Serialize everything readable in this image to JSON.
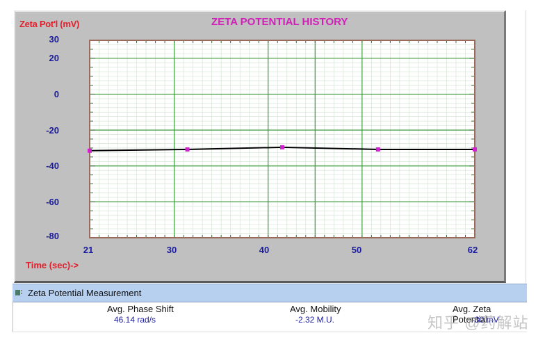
{
  "chart_window": {
    "title": "ZETA POTENTIAL HISTORY",
    "y_axis_label": "Zeta Pot'l (mV)",
    "x_axis_label": "Time (sec)->",
    "y_ticks": [
      "30",
      "20",
      "0",
      "-20",
      "-40",
      "-60",
      "-80"
    ],
    "x_ticks": [
      "21",
      "30",
      "40",
      "50",
      "62"
    ]
  },
  "colors": {
    "title": "#d020b8",
    "axis_label": "#e0202c",
    "tick_label": "#1a1aa0",
    "grid_major": "#3c9a3c",
    "grid_minor": "#cfe0cf",
    "line": "#000000",
    "marker": "#d020d0",
    "background": "#c0c0c0",
    "status_bar": "#b8d0f0"
  },
  "status_bar": {
    "title": "Zeta Potential Measurement"
  },
  "results": {
    "phase_shift": {
      "label": "Avg. Phase Shift",
      "value": "46.14 rad/s"
    },
    "mobility": {
      "label": "Avg. Mobility",
      "value": "-2.32 M.U."
    },
    "zeta_potential": {
      "label": "Avg. Zeta Potential",
      "value": "-30 mV"
    }
  },
  "watermark": "知乎 @药解站",
  "chart_data": {
    "type": "line",
    "title": "ZETA POTENTIAL HISTORY",
    "xlabel": "Time (sec)->",
    "ylabel": "Zeta Pot'l (mV)",
    "xlim": [
      21,
      62
    ],
    "ylim": [
      -80,
      30
    ],
    "x_ticks": [
      21,
      30,
      40,
      50,
      62
    ],
    "y_ticks": [
      30,
      20,
      0,
      -20,
      -40,
      -60,
      -80
    ],
    "grid": true,
    "series": [
      {
        "name": "Zeta Potential",
        "x": [
          21,
          31.4,
          41.5,
          51.7,
          62
        ],
        "values": [
          -31.5,
          -30.8,
          -29.6,
          -30.8,
          -30.8
        ]
      }
    ]
  }
}
